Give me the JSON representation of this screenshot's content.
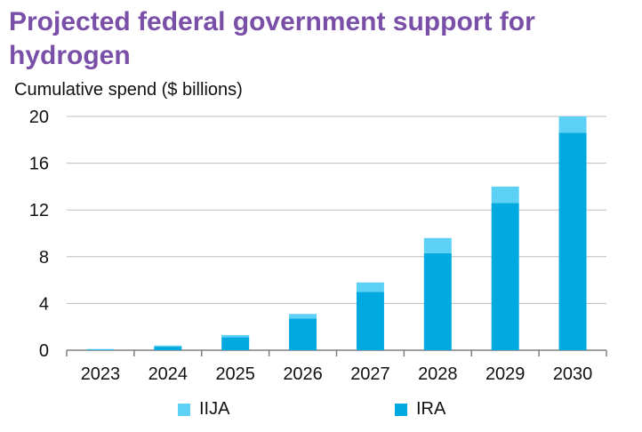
{
  "chart_data": {
    "type": "bar",
    "stacked": true,
    "title": "Projected federal government support for hydrogen",
    "ylabel": "Cumulative spend ($ billions)",
    "xlabel": "",
    "categories": [
      "2023",
      "2024",
      "2025",
      "2026",
      "2027",
      "2028",
      "2029",
      "2030"
    ],
    "series": [
      {
        "name": "IRA",
        "color": "#00a9e0",
        "values": [
          0.05,
          0.3,
          1.1,
          2.7,
          5.0,
          8.3,
          12.6,
          18.6
        ]
      },
      {
        "name": "IIJA",
        "color": "#5dd0f5",
        "values": [
          0.05,
          0.1,
          0.2,
          0.4,
          0.8,
          1.3,
          1.4,
          1.4
        ]
      }
    ],
    "ylim": [
      0,
      20
    ],
    "yticks": [
      "0",
      "4",
      "8",
      "12",
      "16",
      "20"
    ],
    "grid": true,
    "legend_position": "bottom"
  }
}
